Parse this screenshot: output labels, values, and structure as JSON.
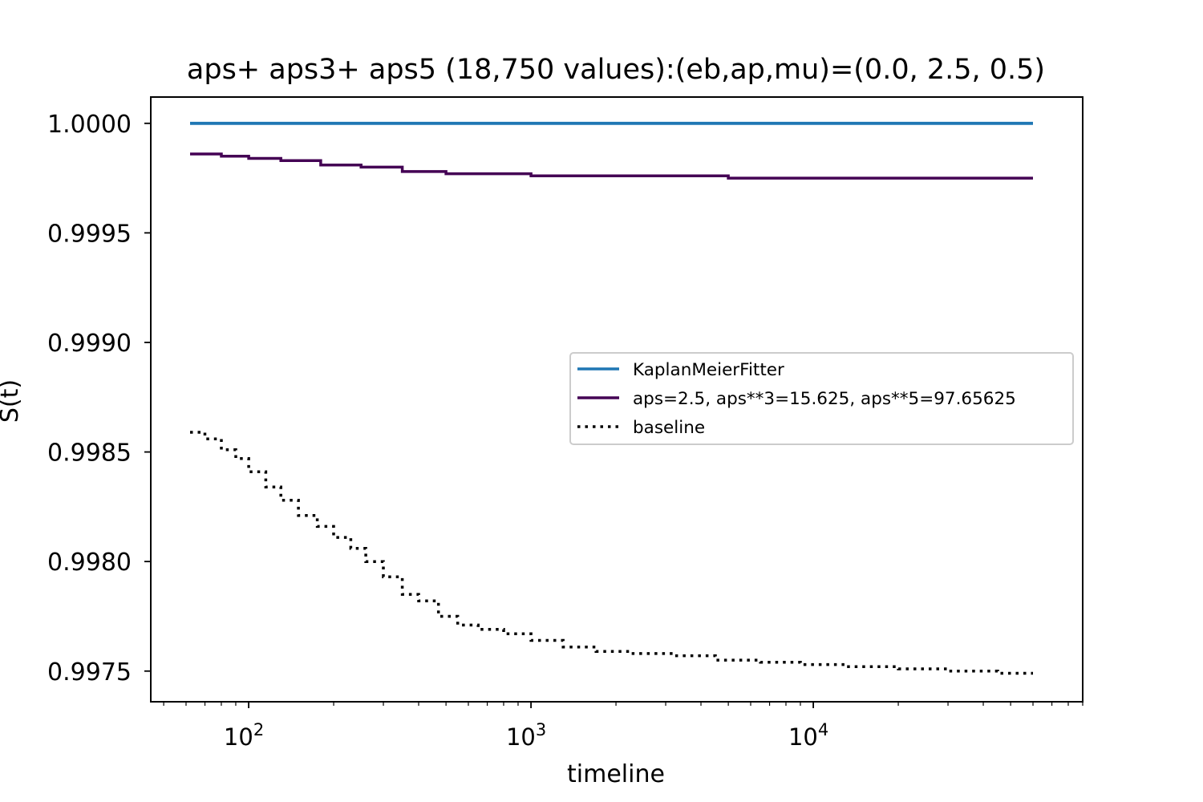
{
  "chart_data": {
    "type": "line",
    "title": "aps+ aps3+ aps5 (18,750 values):(eb,ap,mu)=(0.0, 2.5, 0.5)",
    "xlabel": "timeline",
    "ylabel": "S(t)",
    "xscale": "log",
    "xlim": [
      45,
      90000
    ],
    "ylim": [
      0.99736,
      1.00012
    ],
    "x_ticks": [
      {
        "value": 100,
        "base": "10",
        "exp": "2"
      },
      {
        "value": 1000,
        "base": "10",
        "exp": "3"
      },
      {
        "value": 10000,
        "base": "10",
        "exp": "4"
      }
    ],
    "y_ticks": [
      {
        "value": 1.0,
        "label": "1.0000"
      },
      {
        "value": 0.9995,
        "label": "0.9995"
      },
      {
        "value": 0.999,
        "label": "0.9990"
      },
      {
        "value": 0.9985,
        "label": "0.9985"
      },
      {
        "value": 0.998,
        "label": "0.9980"
      },
      {
        "value": 0.9975,
        "label": "0.9975"
      }
    ],
    "grid": false,
    "legend_position": "center-right",
    "series": [
      {
        "name": "KaplanMeierFitter",
        "color": "#1f77b4",
        "style": "solid",
        "x": [
          62,
          60000
        ],
        "y": [
          1.0,
          1.0
        ]
      },
      {
        "name": "aps=2.5, aps**3=15.625, aps**5=97.65625",
        "color": "#440154",
        "style": "solid",
        "x": [
          62,
          80,
          100,
          130,
          180,
          250,
          350,
          500,
          700,
          1000,
          1500,
          2000,
          3000,
          5000,
          8000,
          12000,
          20000,
          35000,
          60000
        ],
        "y": [
          0.99986,
          0.99985,
          0.99984,
          0.99983,
          0.99981,
          0.9998,
          0.99978,
          0.99977,
          0.99977,
          0.99976,
          0.99976,
          0.99976,
          0.99976,
          0.99975,
          0.99975,
          0.99975,
          0.99975,
          0.99975,
          0.99975
        ]
      },
      {
        "name": "baseline",
        "color": "#000000",
        "style": "dotted",
        "x": [
          62,
          70,
          80,
          90,
          100,
          115,
          130,
          150,
          175,
          200,
          230,
          260,
          300,
          350,
          400,
          470,
          550,
          650,
          800,
          1000,
          1300,
          1700,
          2300,
          3200,
          4500,
          6500,
          9000,
          13000,
          20000,
          30000,
          45000,
          60000
        ],
        "y": [
          0.99859,
          0.99856,
          0.99851,
          0.99847,
          0.99841,
          0.99834,
          0.99828,
          0.99821,
          0.99816,
          0.99811,
          0.99806,
          0.998,
          0.99793,
          0.99785,
          0.99782,
          0.99775,
          0.99771,
          0.99769,
          0.99767,
          0.99764,
          0.99761,
          0.99759,
          0.99758,
          0.99757,
          0.99755,
          0.99754,
          0.99753,
          0.99752,
          0.99751,
          0.9975,
          0.99749,
          0.99749
        ]
      }
    ]
  }
}
